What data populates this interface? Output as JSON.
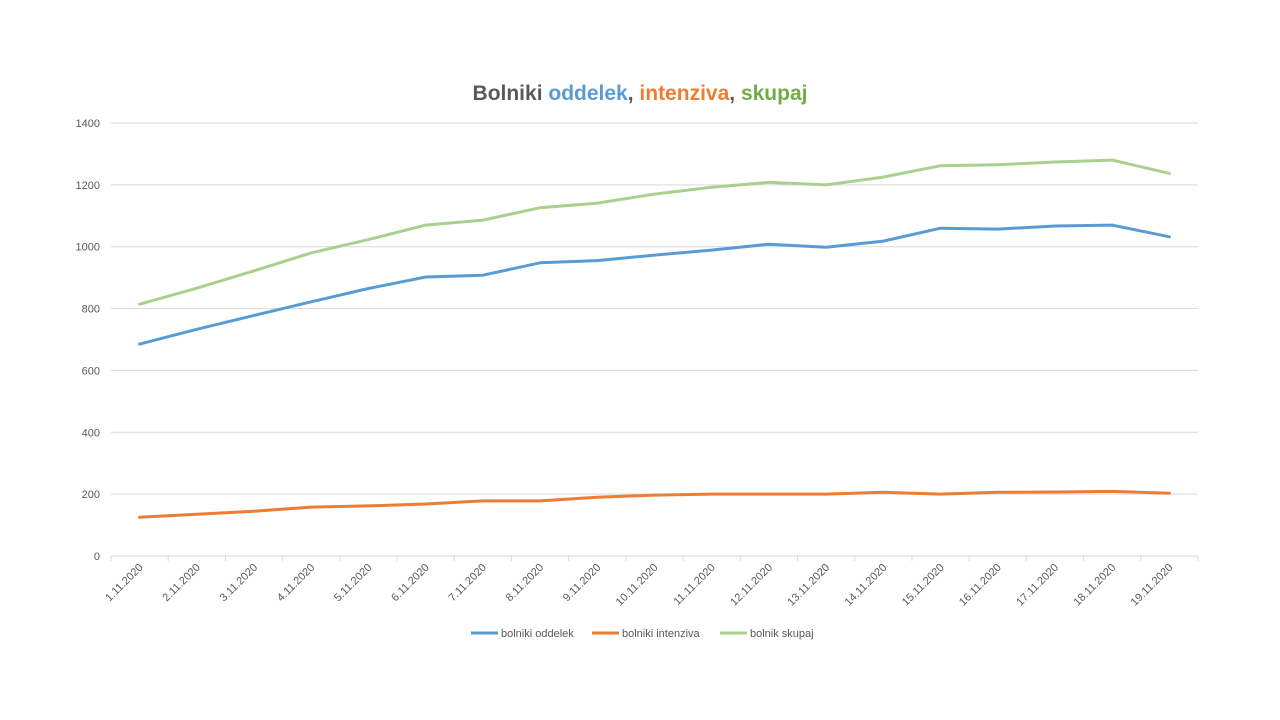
{
  "chart_data": {
    "type": "line",
    "title_parts": [
      {
        "text": "Bolniki ",
        "color": "#595959"
      },
      {
        "text": "oddelek",
        "color": "#5b9bd5"
      },
      {
        "text": ", ",
        "color": "#595959"
      },
      {
        "text": "intenziva",
        "color": "#ed7d31"
      },
      {
        "text": ", ",
        "color": "#595959"
      },
      {
        "text": "skupaj",
        "color": "#70ad47"
      }
    ],
    "categories": [
      "1.11.2020",
      "2.11.2020",
      "3.11.2020",
      "4.11.2020",
      "5.11.2020",
      "6.11.2020",
      "7.11.2020",
      "8.11.2020",
      "9.11.2020",
      "10.11.2020",
      "11.11.2020",
      "12.11.2020",
      "13.11.2020",
      "14.11.2020",
      "15.11.2020",
      "16.11.2020",
      "17.11.2020",
      "18.11.2020",
      "19.11.2020"
    ],
    "y_ticks": [
      "0",
      "200",
      "400",
      "600",
      "800",
      "1000",
      "1200",
      "1400"
    ],
    "ylim": [
      0,
      1400
    ],
    "grid": true,
    "legend_position": "bottom",
    "series": [
      {
        "name": "bolniki oddelek",
        "color": "#5b9bd5",
        "values": [
          685,
          733,
          778,
          822,
          865,
          902,
          908,
          948,
          955,
          973,
          989,
          1008,
          998,
          1018,
          1060,
          1057,
          1067,
          1070,
          1032
        ]
      },
      {
        "name": "bolniki intenziva",
        "color": "#ed7d31",
        "values": [
          125,
          135,
          145,
          158,
          162,
          168,
          178,
          178,
          190,
          197,
          200,
          200,
          200,
          206,
          200,
          206,
          207,
          209,
          203
        ]
      },
      {
        "name": "bolnik skupaj",
        "color": "#a9d18e",
        "values": [
          814,
          866,
          922,
          980,
          1023,
          1070,
          1086,
          1126,
          1141,
          1170,
          1192,
          1208,
          1200,
          1225,
          1262,
          1265,
          1274,
          1280,
          1237
        ]
      }
    ]
  }
}
